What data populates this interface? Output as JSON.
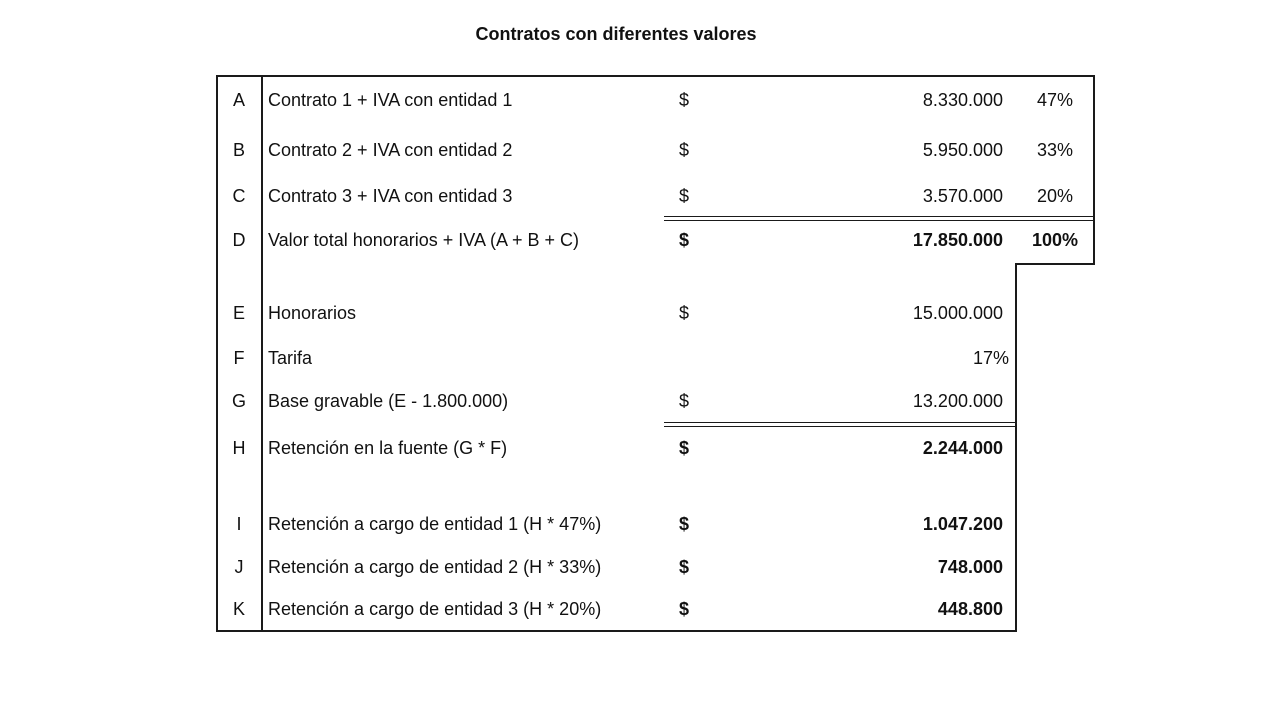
{
  "title": "Contratos con diferentes valores",
  "rows": [
    {
      "letter": "A",
      "concept": "Contrato 1 + IVA con entidad 1",
      "currency": "$",
      "value": "8.330.000",
      "percent": "47%"
    },
    {
      "letter": "B",
      "concept": "Contrato 2 + IVA con entidad 2",
      "currency": "$",
      "value": "5.950.000",
      "percent": "33%"
    },
    {
      "letter": "C",
      "concept": "Contrato 3 + IVA con entidad 3",
      "currency": "$",
      "value": "3.570.000",
      "percent": "20%"
    },
    {
      "letter": "D",
      "concept": "Valor total honorarios + IVA (A + B + C)",
      "currency": "$",
      "value": "17.850.000",
      "percent": "100%"
    },
    {
      "letter": "E",
      "concept": "Honorarios",
      "currency": "$",
      "value": "15.000.000"
    },
    {
      "letter": "F",
      "concept": "Tarifa",
      "value": "17%"
    },
    {
      "letter": "G",
      "concept": "Base gravable (E - 1.800.000)",
      "currency": "$",
      "value": "13.200.000"
    },
    {
      "letter": "H",
      "concept": "Retención en la fuente (G * F)",
      "currency": "$",
      "value": "2.244.000"
    },
    {
      "letter": "I",
      "concept": "Retención a cargo de entidad 1 (H * 47%)",
      "currency": "$",
      "value": "1.047.200"
    },
    {
      "letter": "J",
      "concept": "Retención a cargo de entidad 2 (H * 33%)",
      "currency": "$",
      "value": "748.000"
    },
    {
      "letter": "K",
      "concept": "Retención a cargo de entidad 3 (H * 20%)",
      "currency": "$",
      "value": "448.800"
    }
  ]
}
